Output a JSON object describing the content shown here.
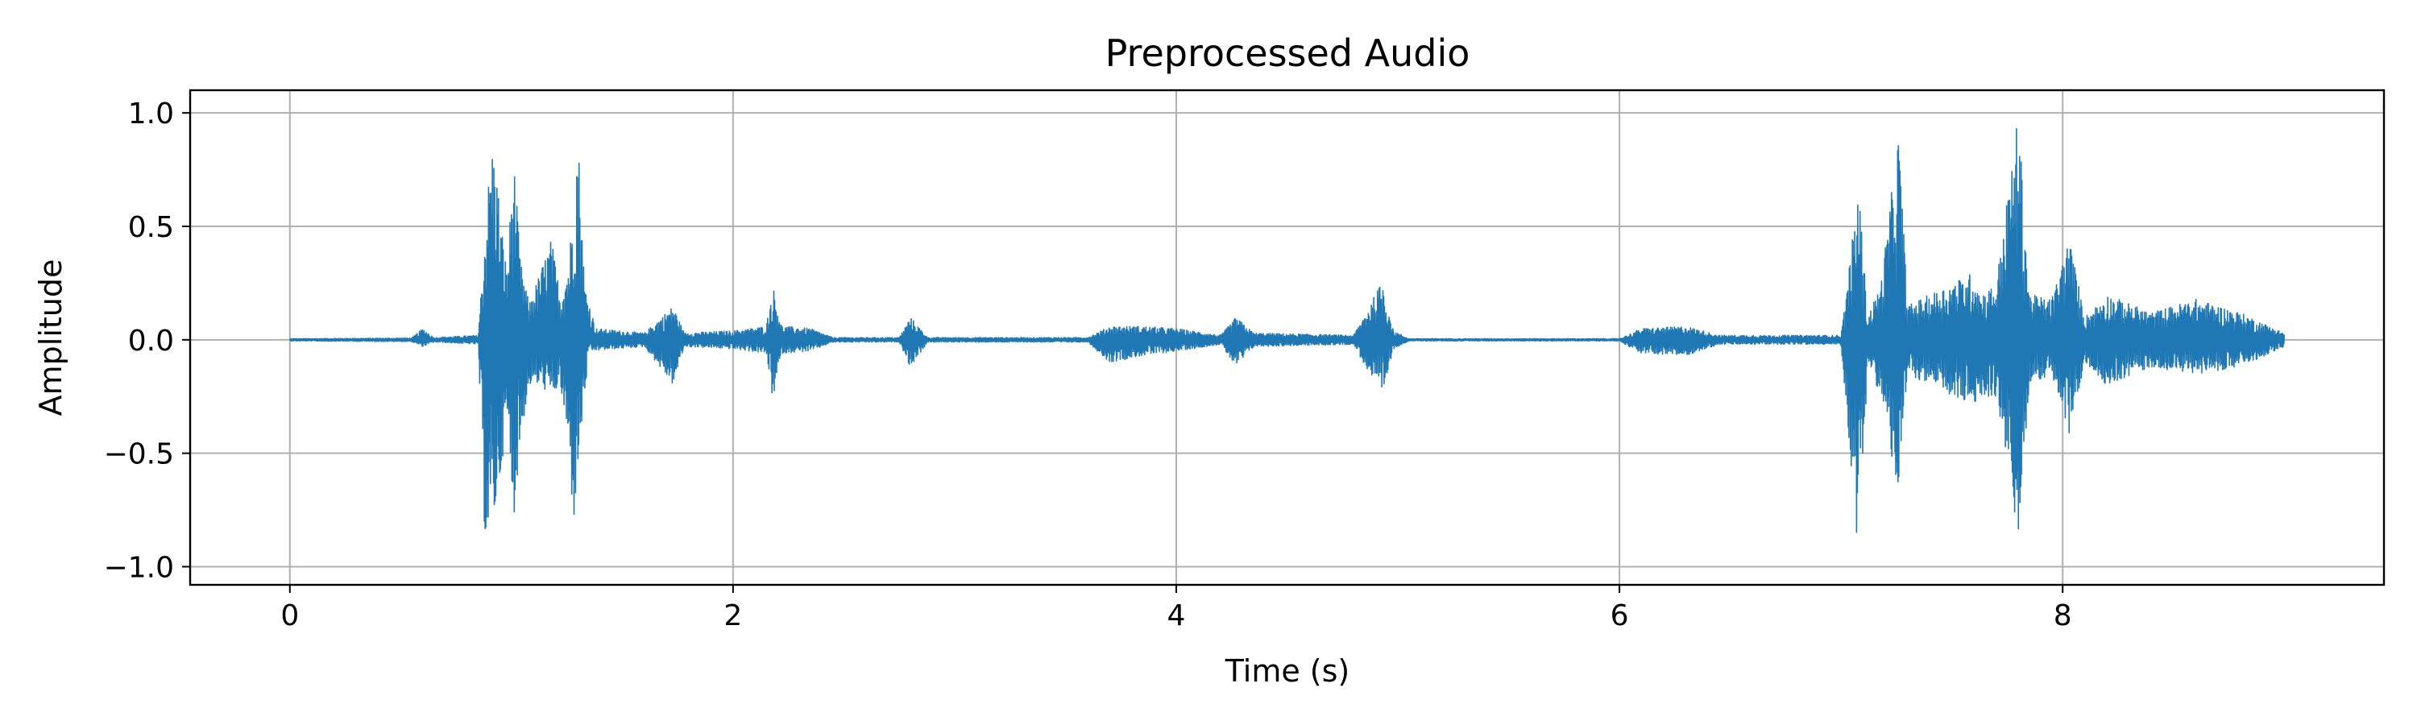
{
  "chart_data": {
    "type": "line",
    "title": "Preprocessed Audio",
    "xlabel": "Time (s)",
    "ylabel": "Amplitude",
    "xlim": [
      -0.45,
      9.45
    ],
    "ylim": [
      -1.08,
      1.1
    ],
    "x_ticks": [
      0,
      2,
      4,
      6,
      8
    ],
    "x_tick_labels": [
      "0",
      "2",
      "4",
      "6",
      "8"
    ],
    "y_ticks": [
      1.0,
      0.5,
      0.0,
      -0.5,
      -1.0
    ],
    "y_tick_labels": [
      "1.0",
      "0.5",
      "0.0",
      "−0.5",
      "−1.0"
    ],
    "grid": true,
    "line_color": "#1f77b4",
    "grid_color": "#b0b0b0",
    "duration": 9.0,
    "series": [
      {
        "envelope_upper": [
          [
            0.0,
            0.005
          ],
          [
            0.55,
            0.008
          ],
          [
            0.6,
            0.05
          ],
          [
            0.65,
            0.01
          ],
          [
            0.85,
            0.02
          ],
          [
            0.89,
            0.62
          ],
          [
            0.91,
            0.87
          ],
          [
            0.93,
            0.8
          ],
          [
            0.95,
            0.55
          ],
          [
            0.98,
            0.3
          ],
          [
            1.01,
            0.82
          ],
          [
            1.04,
            0.35
          ],
          [
            1.08,
            0.16
          ],
          [
            1.13,
            0.3
          ],
          [
            1.18,
            0.45
          ],
          [
            1.22,
            0.2
          ],
          [
            1.26,
            0.35
          ],
          [
            1.3,
            0.93
          ],
          [
            1.33,
            0.25
          ],
          [
            1.38,
            0.05
          ],
          [
            1.6,
            0.03
          ],
          [
            1.73,
            0.15
          ],
          [
            1.78,
            0.03
          ],
          [
            2.0,
            0.04
          ],
          [
            2.15,
            0.06
          ],
          [
            2.18,
            0.24
          ],
          [
            2.22,
            0.06
          ],
          [
            2.35,
            0.05
          ],
          [
            2.45,
            0.01
          ],
          [
            2.75,
            0.01
          ],
          [
            2.8,
            0.1
          ],
          [
            2.88,
            0.01
          ],
          [
            3.6,
            0.01
          ],
          [
            3.7,
            0.06
          ],
          [
            3.85,
            0.06
          ],
          [
            4.0,
            0.05
          ],
          [
            4.2,
            0.02
          ],
          [
            4.27,
            0.1
          ],
          [
            4.35,
            0.03
          ],
          [
            4.8,
            0.02
          ],
          [
            4.93,
            0.26
          ],
          [
            4.98,
            0.04
          ],
          [
            5.05,
            0.005
          ],
          [
            6.0,
            0.005
          ],
          [
            6.1,
            0.05
          ],
          [
            6.3,
            0.06
          ],
          [
            6.45,
            0.02
          ],
          [
            7.0,
            0.02
          ],
          [
            7.08,
            0.68
          ],
          [
            7.12,
            0.1
          ],
          [
            7.18,
            0.25
          ],
          [
            7.26,
            0.92
          ],
          [
            7.3,
            0.15
          ],
          [
            7.5,
            0.25
          ],
          [
            7.6,
            0.3
          ],
          [
            7.63,
            0.2
          ],
          [
            7.7,
            0.25
          ],
          [
            7.8,
            1.0
          ],
          [
            7.85,
            0.2
          ],
          [
            7.95,
            0.18
          ],
          [
            8.03,
            0.45
          ],
          [
            8.1,
            0.1
          ],
          [
            8.2,
            0.2
          ],
          [
            8.4,
            0.12
          ],
          [
            8.6,
            0.18
          ],
          [
            8.8,
            0.12
          ],
          [
            9.0,
            0.03
          ]
        ],
        "envelope_lower": [
          [
            0.0,
            -0.005
          ],
          [
            0.55,
            -0.008
          ],
          [
            0.6,
            -0.03
          ],
          [
            0.65,
            -0.01
          ],
          [
            0.85,
            -0.02
          ],
          [
            0.88,
            -0.88
          ],
          [
            0.91,
            -0.85
          ],
          [
            0.93,
            -0.75
          ],
          [
            0.95,
            -0.6
          ],
          [
            0.98,
            -0.35
          ],
          [
            1.01,
            -0.79
          ],
          [
            1.04,
            -0.45
          ],
          [
            1.08,
            -0.2
          ],
          [
            1.13,
            -0.2
          ],
          [
            1.18,
            -0.25
          ],
          [
            1.22,
            -0.2
          ],
          [
            1.26,
            -0.5
          ],
          [
            1.28,
            -0.83
          ],
          [
            1.31,
            -0.46
          ],
          [
            1.35,
            -0.05
          ],
          [
            1.6,
            -0.03
          ],
          [
            1.73,
            -0.2
          ],
          [
            1.78,
            -0.03
          ],
          [
            2.0,
            -0.04
          ],
          [
            2.15,
            -0.06
          ],
          [
            2.18,
            -0.27
          ],
          [
            2.22,
            -0.06
          ],
          [
            2.35,
            -0.05
          ],
          [
            2.45,
            -0.01
          ],
          [
            2.75,
            -0.01
          ],
          [
            2.8,
            -0.12
          ],
          [
            2.88,
            -0.01
          ],
          [
            3.6,
            -0.01
          ],
          [
            3.7,
            -0.1
          ],
          [
            3.85,
            -0.07
          ],
          [
            4.0,
            -0.05
          ],
          [
            4.2,
            -0.02
          ],
          [
            4.27,
            -0.12
          ],
          [
            4.35,
            -0.03
          ],
          [
            4.8,
            -0.02
          ],
          [
            4.93,
            -0.26
          ],
          [
            4.98,
            -0.04
          ],
          [
            5.05,
            -0.005
          ],
          [
            6.0,
            -0.005
          ],
          [
            6.1,
            -0.06
          ],
          [
            6.3,
            -0.07
          ],
          [
            6.45,
            -0.02
          ],
          [
            7.0,
            -0.02
          ],
          [
            7.08,
            -0.98
          ],
          [
            7.12,
            -0.1
          ],
          [
            7.18,
            -0.25
          ],
          [
            7.26,
            -0.7
          ],
          [
            7.3,
            -0.15
          ],
          [
            7.5,
            -0.25
          ],
          [
            7.6,
            -0.3
          ],
          [
            7.63,
            -0.25
          ],
          [
            7.7,
            -0.25
          ],
          [
            7.8,
            -0.88
          ],
          [
            7.85,
            -0.2
          ],
          [
            7.95,
            -0.15
          ],
          [
            8.03,
            -0.43
          ],
          [
            8.1,
            -0.1
          ],
          [
            8.2,
            -0.2
          ],
          [
            8.4,
            -0.12
          ],
          [
            8.6,
            -0.15
          ],
          [
            8.8,
            -0.12
          ],
          [
            9.0,
            -0.03
          ]
        ]
      }
    ]
  }
}
